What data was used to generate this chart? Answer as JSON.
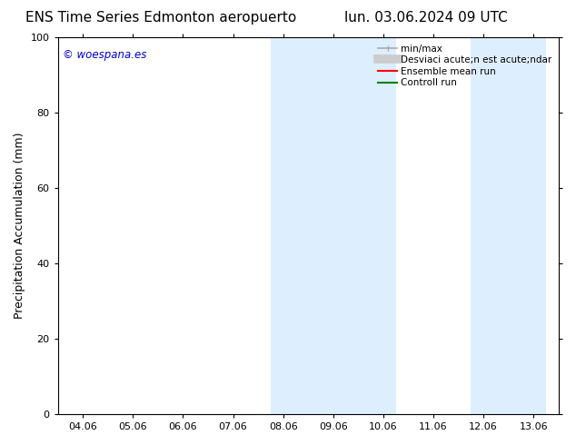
{
  "title_left": "ENS Time Series Edmonton aeropuerto",
  "title_right": "lun. 03.06.2024 09 UTC",
  "ylabel": "Precipitation Accumulation (mm)",
  "xlim_dates": [
    "04.06",
    "05.06",
    "06.06",
    "07.06",
    "08.06",
    "09.06",
    "10.06",
    "11.06",
    "12.06",
    "13.06"
  ],
  "x_day_values": [
    4,
    5,
    6,
    7,
    8,
    9,
    10,
    11,
    12,
    13
  ],
  "xlim": [
    3.5,
    13.5
  ],
  "ylim": [
    0,
    100
  ],
  "yticks": [
    0,
    20,
    40,
    60,
    80,
    100
  ],
  "shade_regions": [
    {
      "x_start": 7.75,
      "x_end": 10.25
    },
    {
      "x_start": 11.75,
      "x_end": 13.25
    }
  ],
  "shade_color": "#ddeeff",
  "watermark_text": "© woespana.es",
  "watermark_color": "#0000cc",
  "legend_label1": "min/max",
  "legend_label2": "Desviaci acute;n est acute;ndar",
  "legend_label3": "Ensemble mean run",
  "legend_label4": "Controll run",
  "legend_color1": "#aaaaaa",
  "legend_color2": "#cccccc",
  "legend_color3": "#ff0000",
  "legend_color4": "#008000",
  "bg_color": "#ffffff",
  "spine_color": "#000000",
  "title_fontsize": 11,
  "tick_fontsize": 8,
  "ylabel_fontsize": 9,
  "legend_fontsize": 7.5
}
